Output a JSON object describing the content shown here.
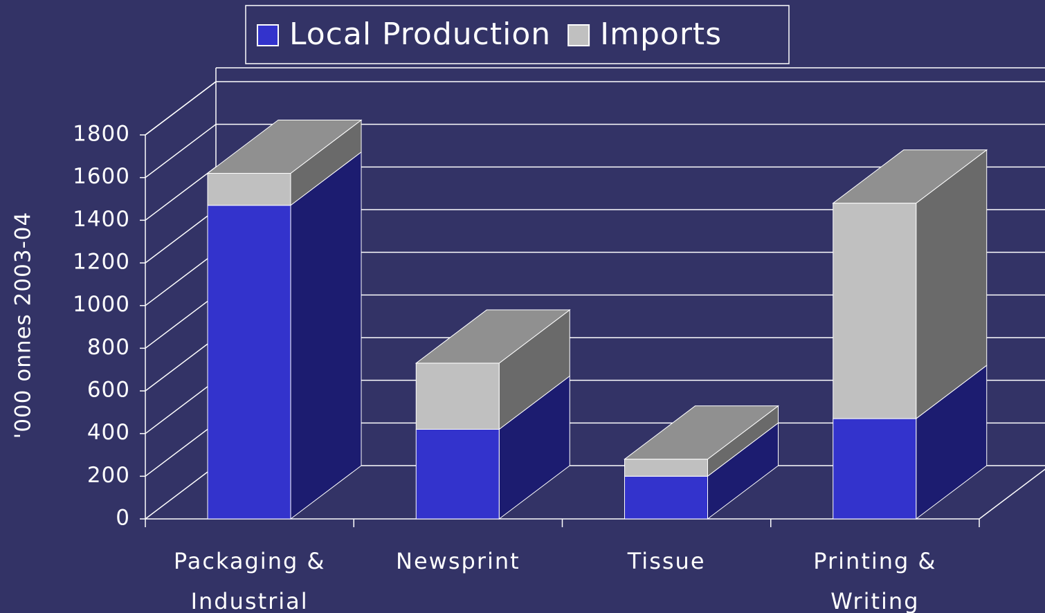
{
  "chart_data": {
    "type": "bar3d_stacked",
    "categories": [
      "Packaging & Industrial",
      "Newsprint",
      "Tissue",
      "Printing & Writing"
    ],
    "series": [
      {
        "name": "Local Production",
        "color": "#3333cc",
        "values": [
          1470,
          420,
          200,
          470
        ]
      },
      {
        "name": "Imports",
        "color": "#c0c0c0",
        "values": [
          150,
          310,
          80,
          1010
        ]
      }
    ],
    "y_label": "'000 onnes 2003-04",
    "ylim": [
      0,
      1800
    ],
    "yticks": [
      0,
      200,
      400,
      600,
      800,
      1000,
      1200,
      1400,
      1600,
      1800
    ],
    "grid": true,
    "legend": "top"
  }
}
